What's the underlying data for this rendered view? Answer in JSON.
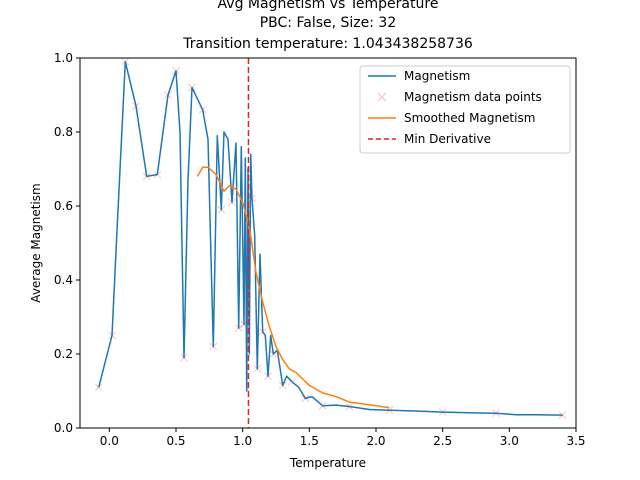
{
  "chart_data": {
    "type": "line",
    "title_lines": [
      "Avg Magnetism vs Temperature",
      "PBC: False, Size: 32",
      "Transition temperature: 1.043438258736"
    ],
    "xlabel": "Temperature",
    "ylabel": "Average Magnetism",
    "xlim": [
      -0.22,
      3.5
    ],
    "ylim": [
      0.0,
      1.0
    ],
    "xticks": [
      0.0,
      0.5,
      1.0,
      1.5,
      2.0,
      2.5,
      3.0,
      3.5
    ],
    "xtick_labels": [
      "0.0",
      "0.5",
      "1.0",
      "1.5",
      "2.0",
      "2.5",
      "3.0",
      "3.5"
    ],
    "yticks": [
      0.0,
      0.2,
      0.4,
      0.6,
      0.8,
      1.0
    ],
    "ytick_labels": [
      "0.0",
      "0.2",
      "0.4",
      "0.6",
      "0.8",
      "1.0"
    ],
    "legend_position": "top-right",
    "transition_temperature": 1.043438258736,
    "series": [
      {
        "name": "Magnetism",
        "style": "line",
        "color": "#1f77b4",
        "x": [
          -0.08,
          0.02,
          0.06,
          0.12,
          0.2,
          0.28,
          0.36,
          0.44,
          0.5,
          0.53,
          0.56,
          0.59,
          0.62,
          0.7,
          0.74,
          0.78,
          0.81,
          0.84,
          0.86,
          0.89,
          0.92,
          0.95,
          0.97,
          0.99,
          1.01,
          1.02,
          1.03,
          1.04,
          1.05,
          1.06,
          1.07,
          1.09,
          1.11,
          1.13,
          1.15,
          1.17,
          1.19,
          1.21,
          1.23,
          1.26,
          1.3,
          1.33,
          1.37,
          1.42,
          1.47,
          1.52,
          1.6,
          1.7,
          1.8,
          1.95,
          2.1,
          2.3,
          2.5,
          2.7,
          2.9,
          3.05,
          3.2,
          3.4
        ],
        "y": [
          0.11,
          0.25,
          0.55,
          0.99,
          0.87,
          0.68,
          0.685,
          0.9,
          0.965,
          0.8,
          0.19,
          0.67,
          0.92,
          0.86,
          0.78,
          0.22,
          0.79,
          0.59,
          0.8,
          0.78,
          0.61,
          0.77,
          0.27,
          0.76,
          0.28,
          0.73,
          0.1,
          0.7,
          0.2,
          0.74,
          0.62,
          0.52,
          0.16,
          0.47,
          0.26,
          0.25,
          0.14,
          0.25,
          0.2,
          0.21,
          0.115,
          0.14,
          0.125,
          0.11,
          0.08,
          0.085,
          0.06,
          0.062,
          0.058,
          0.05,
          0.048,
          0.046,
          0.043,
          0.041,
          0.04,
          0.036,
          0.036,
          0.035
        ]
      },
      {
        "name": "Magnetism data points",
        "style": "markers",
        "marker": "x",
        "color": "#ffc8cc",
        "x": [
          -0.08,
          0.02,
          0.12,
          0.2,
          0.28,
          0.36,
          0.44,
          0.5,
          0.56,
          0.62,
          0.7,
          0.78,
          0.84,
          0.92,
          0.97,
          1.01,
          1.04,
          1.07,
          1.11,
          1.15,
          1.19,
          1.23,
          1.3,
          1.37,
          1.47,
          1.6,
          1.8,
          2.1,
          2.5,
          2.9,
          3.4
        ],
        "y": [
          0.11,
          0.25,
          0.99,
          0.87,
          0.68,
          0.685,
          0.9,
          0.965,
          0.19,
          0.92,
          0.86,
          0.22,
          0.59,
          0.61,
          0.27,
          0.28,
          0.7,
          0.62,
          0.16,
          0.26,
          0.14,
          0.2,
          0.115,
          0.125,
          0.08,
          0.06,
          0.058,
          0.048,
          0.043,
          0.04,
          0.035
        ]
      },
      {
        "name": "Smoothed Magnetism",
        "style": "line",
        "color": "#ff7f0e",
        "x": [
          0.66,
          0.7,
          0.74,
          0.8,
          0.86,
          0.9,
          0.95,
          1.0,
          1.03,
          1.06,
          1.1,
          1.15,
          1.2,
          1.25,
          1.3,
          1.35,
          1.4,
          1.5,
          1.6,
          1.7,
          1.8,
          1.9,
          2.0,
          2.1
        ],
        "y": [
          0.68,
          0.705,
          0.705,
          0.685,
          0.64,
          0.655,
          0.645,
          0.61,
          0.57,
          0.52,
          0.42,
          0.34,
          0.275,
          0.22,
          0.185,
          0.16,
          0.15,
          0.115,
          0.095,
          0.085,
          0.07,
          0.065,
          0.06,
          0.055
        ]
      },
      {
        "name": "Min Derivative",
        "style": "vline",
        "linestyle": "dashed",
        "color": "#d62728",
        "x": 1.043438258736
      }
    ]
  }
}
